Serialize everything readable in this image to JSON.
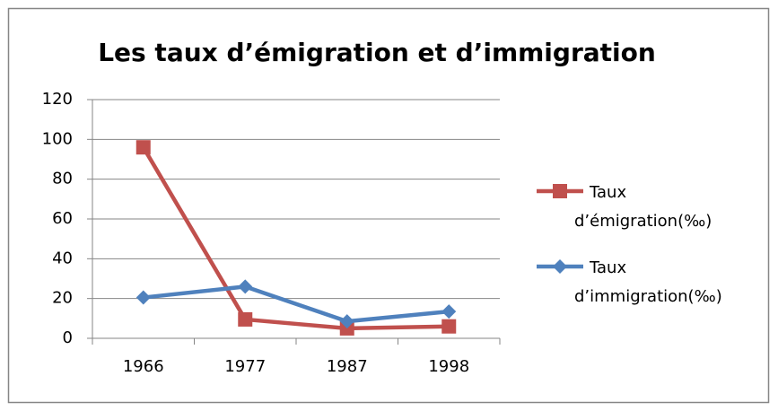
{
  "chart_data": {
    "type": "line",
    "title": "Les taux d’émigration et d’immigration",
    "categories": [
      "1966",
      "1977",
      "1987",
      "1998"
    ],
    "series": [
      {
        "name": "Taux d’émigration(‰)",
        "color": "#c0504d",
        "marker": "square",
        "values": [
          96,
          9.5,
          5,
          6
        ]
      },
      {
        "name": "Taux d’immigration(‰)",
        "color": "#4f81bd",
        "marker": "diamond",
        "values": [
          20.5,
          26,
          8.5,
          13.5
        ]
      }
    ],
    "ylim": [
      0,
      120
    ],
    "yticks": [
      0,
      20,
      40,
      60,
      80,
      100,
      120
    ],
    "grid": true,
    "legend": "right"
  }
}
